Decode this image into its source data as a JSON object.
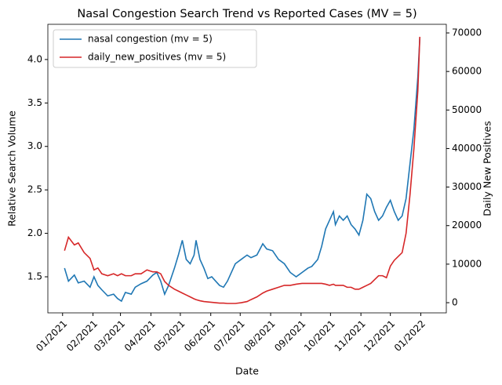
{
  "chart_data": {
    "type": "line",
    "title": "Nasal Congestion Search Trend vs Reported Cases (MV = 5)",
    "x_label": "Date",
    "y_label": "Relative Search Volume",
    "y2_label": "Daily New Positives",
    "xlim": [
      -15,
      391
    ],
    "xticks": [
      {
        "value": 0,
        "label": "01/2021"
      },
      {
        "value": 31,
        "label": "02/2021"
      },
      {
        "value": 59,
        "label": "03/2021"
      },
      {
        "value": 90,
        "label": "04/2021"
      },
      {
        "value": 120,
        "label": "05/2021"
      },
      {
        "value": 151,
        "label": "06/2021"
      },
      {
        "value": 181,
        "label": "07/2021"
      },
      {
        "value": 212,
        "label": "08/2021"
      },
      {
        "value": 243,
        "label": "09/2021"
      },
      {
        "value": 273,
        "label": "10/2021"
      },
      {
        "value": 304,
        "label": "11/2021"
      },
      {
        "value": 334,
        "label": "12/2021"
      },
      {
        "value": 365,
        "label": "01/2022"
      }
    ],
    "ylim": [
      1.085,
      4.405
    ],
    "yticks": [
      1.5,
      {
        "value": 2,
        "label": "2.0"
      },
      2.5,
      {
        "value": 3,
        "label": "3.0"
      },
      3.5,
      {
        "value": 4,
        "label": "4.0"
      }
    ],
    "y2lim": [
      -2640,
      72240
    ],
    "y2ticks": [
      0,
      10000,
      20000,
      30000,
      40000,
      50000,
      60000,
      70000
    ],
    "legend": "upper left",
    "x": [
      2,
      6,
      12,
      16,
      22,
      28,
      32,
      36,
      40,
      46,
      52,
      56,
      60,
      64,
      70,
      74,
      80,
      86,
      92,
      96,
      100,
      104,
      108,
      114,
      118,
      122,
      126,
      130,
      134,
      136,
      140,
      144,
      148,
      152,
      156,
      160,
      164,
      168,
      172,
      176,
      182,
      188,
      192,
      198,
      204,
      208,
      214,
      220,
      226,
      232,
      238,
      244,
      250,
      254,
      260,
      264,
      268,
      272,
      276,
      278,
      282,
      286,
      290,
      294,
      298,
      302,
      306,
      310,
      314,
      318,
      322,
      326,
      330,
      334,
      338,
      342,
      346,
      350,
      354,
      358,
      362,
      364
    ],
    "series": [
      {
        "name": "nasal congestion (mv = 5)",
        "color": "#1f77b4",
        "axis": "y",
        "values": [
          1.6,
          1.45,
          1.52,
          1.43,
          1.45,
          1.38,
          1.5,
          1.4,
          1.35,
          1.28,
          1.3,
          1.25,
          1.22,
          1.32,
          1.3,
          1.38,
          1.42,
          1.45,
          1.52,
          1.55,
          1.45,
          1.3,
          1.4,
          1.6,
          1.75,
          1.92,
          1.7,
          1.65,
          1.75,
          1.92,
          1.7,
          1.6,
          1.48,
          1.5,
          1.45,
          1.4,
          1.38,
          1.45,
          1.55,
          1.65,
          1.7,
          1.75,
          1.72,
          1.75,
          1.88,
          1.82,
          1.8,
          1.7,
          1.65,
          1.55,
          1.5,
          1.55,
          1.6,
          1.62,
          1.7,
          1.85,
          2.05,
          2.15,
          2.25,
          2.1,
          2.2,
          2.15,
          2.2,
          2.1,
          2.05,
          1.98,
          2.15,
          2.45,
          2.4,
          2.25,
          2.15,
          2.2,
          2.3,
          2.38,
          2.25,
          2.15,
          2.2,
          2.4,
          2.8,
          3.2,
          3.8,
          4.25
        ]
      },
      {
        "name": "daily_new_positives (mv = 5)",
        "color": "#d62728",
        "axis": "y2",
        "values": [
          13500,
          17000,
          15000,
          15500,
          13000,
          11500,
          8500,
          9000,
          7500,
          7000,
          7500,
          7000,
          7500,
          7000,
          7000,
          7500,
          7500,
          8500,
          8000,
          8000,
          7500,
          5500,
          4500,
          3500,
          3000,
          2500,
          2000,
          1500,
          1000,
          800,
          500,
          300,
          200,
          100,
          0,
          -100,
          -100,
          -200,
          -200,
          -200,
          0,
          300,
          800,
          1500,
          2500,
          3000,
          3500,
          4000,
          4500,
          4500,
          4800,
          5000,
          5000,
          5000,
          5000,
          5000,
          4800,
          4500,
          4800,
          4500,
          4500,
          4500,
          4000,
          4000,
          3500,
          3500,
          4000,
          4500,
          5000,
          6000,
          7000,
          7000,
          6500,
          9500,
          11000,
          12000,
          13000,
          18000,
          28000,
          40000,
          55000,
          69000
        ]
      }
    ]
  }
}
